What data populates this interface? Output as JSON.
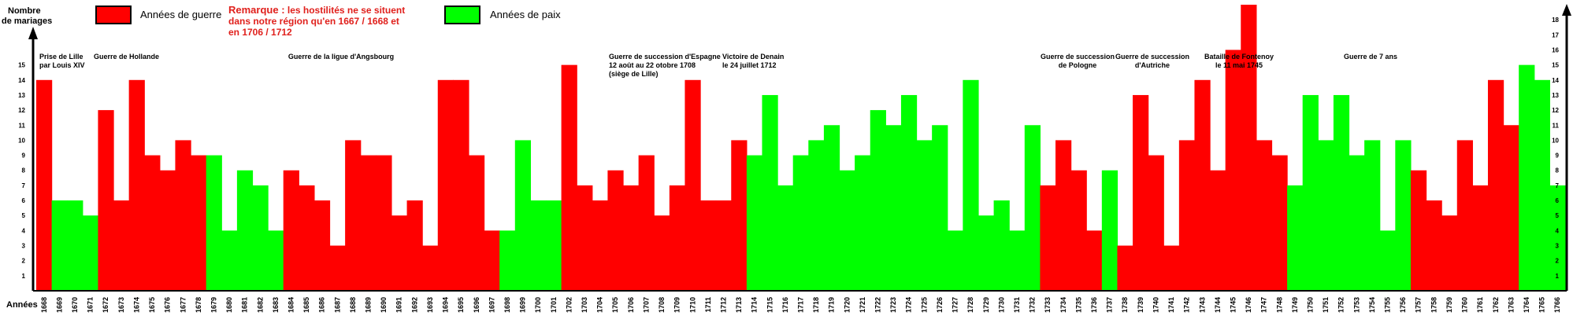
{
  "chart_data": {
    "type": "bar",
    "y_label_line1": "Nombre",
    "y_label_line2": "de mariages",
    "x_label": "Années",
    "ylim": [
      0,
      19
    ],
    "yticks_left": [
      1,
      2,
      3,
      4,
      5,
      6,
      7,
      8,
      9,
      10,
      11,
      12,
      13,
      14,
      15
    ],
    "yticks_right": [
      1,
      2,
      3,
      4,
      5,
      6,
      7,
      8,
      9,
      10,
      11,
      12,
      13,
      14,
      15,
      16,
      17,
      18
    ],
    "grid": false,
    "legend": [
      {
        "name": "Années de guerre",
        "color": "#ff0000"
      },
      {
        "name": "Années de paix",
        "color": "#00ff00"
      }
    ],
    "remark": {
      "prefix": "Remarque :",
      "line1": " les hostilités ne se situent",
      "line2": "dans notre région qu'en 1667 / 1668 et",
      "line3": "en 1706 / 1712"
    },
    "annotations": [
      {
        "year": 1668,
        "lines": [
          "Prise de Lille",
          "par Louis XIV"
        ]
      },
      {
        "year": 1673,
        "lines": [
          "Guerre de Hollande"
        ]
      },
      {
        "year": 1689,
        "lines": [
          "Guerre de la ligue d'Angsbourg"
        ]
      },
      {
        "year": 1706,
        "lines": [
          "Guerre de succession d'Espagne",
          "12 août au 22 otobre 1708",
          "(siège de Lille)"
        ]
      },
      {
        "year": 1712,
        "lines": [
          "Victoire de Denain",
          "le 24 juillet 1712"
        ]
      },
      {
        "year": 1734,
        "lines": [
          "Guerre de succession",
          "de Pologne"
        ]
      },
      {
        "year": 1740,
        "lines": [
          "Guerre de succession",
          "d'Autriche"
        ]
      },
      {
        "year": 1747,
        "lines": [
          "Bataille de Fontenoy",
          "le 11 mai 1745"
        ]
      },
      {
        "year": 1760,
        "lines": [
          "Guerre de 7 ans"
        ]
      }
    ],
    "categories": [
      1668,
      1669,
      1670,
      1671,
      1672,
      1673,
      1674,
      1675,
      1676,
      1677,
      1678,
      1679,
      1680,
      1681,
      1682,
      1683,
      1684,
      1685,
      1686,
      1687,
      1688,
      1689,
      1690,
      1691,
      1692,
      1693,
      1694,
      1695,
      1696,
      1697,
      1698,
      1699,
      1700,
      1701,
      1702,
      1703,
      1704,
      1705,
      1706,
      1707,
      1708,
      1709,
      1710,
      1711,
      1712,
      1713,
      1714,
      1715,
      1716,
      1717,
      1718,
      1719,
      1720,
      1721,
      1722,
      1723,
      1724,
      1725,
      1726,
      1727,
      1728,
      1729,
      1730,
      1731,
      1732,
      1733,
      1734,
      1735,
      1736,
      1737,
      1738,
      1739,
      1740,
      1741,
      1742,
      1743,
      1744,
      1745,
      1746,
      1747,
      1748,
      1749,
      1750,
      1751,
      1752,
      1753,
      1754,
      1755,
      1756,
      1757,
      1758,
      1759,
      1760,
      1761,
      1762,
      1763,
      1764,
      1765,
      1766
    ],
    "values": [
      14,
      6,
      6,
      5,
      12,
      6,
      14,
      9,
      8,
      10,
      9,
      9,
      4,
      8,
      7,
      4,
      8,
      7,
      6,
      3,
      10,
      9,
      9,
      5,
      6,
      3,
      14,
      14,
      9,
      4,
      4,
      10,
      6,
      6,
      15,
      7,
      6,
      8,
      7,
      9,
      5,
      7,
      14,
      6,
      6,
      10,
      9,
      13,
      7,
      9,
      10,
      11,
      8,
      9,
      12,
      11,
      13,
      10,
      11,
      4,
      14,
      5,
      6,
      4,
      11,
      7,
      10,
      8,
      4,
      8,
      3,
      13,
      9,
      3,
      10,
      14,
      8,
      16,
      19,
      10,
      9,
      7,
      13,
      10,
      13,
      9,
      10,
      4,
      10,
      8,
      6,
      5,
      10,
      7,
      14,
      11,
      15,
      14,
      7
    ],
    "war": [
      1,
      0,
      0,
      0,
      1,
      1,
      1,
      1,
      1,
      1,
      1,
      0,
      0,
      0,
      0,
      0,
      1,
      1,
      1,
      1,
      1,
      1,
      1,
      1,
      1,
      1,
      1,
      1,
      1,
      1,
      0,
      0,
      0,
      0,
      1,
      1,
      1,
      1,
      1,
      1,
      1,
      1,
      1,
      1,
      1,
      1,
      0,
      0,
      0,
      0,
      0,
      0,
      0,
      0,
      0,
      0,
      0,
      0,
      0,
      0,
      0,
      0,
      0,
      0,
      0,
      1,
      1,
      1,
      1,
      0,
      1,
      1,
      1,
      1,
      1,
      1,
      1,
      1,
      1,
      1,
      1,
      0,
      0,
      0,
      0,
      0,
      0,
      0,
      0,
      1,
      1,
      1,
      1,
      1,
      1,
      1,
      0,
      0,
      0
    ]
  }
}
